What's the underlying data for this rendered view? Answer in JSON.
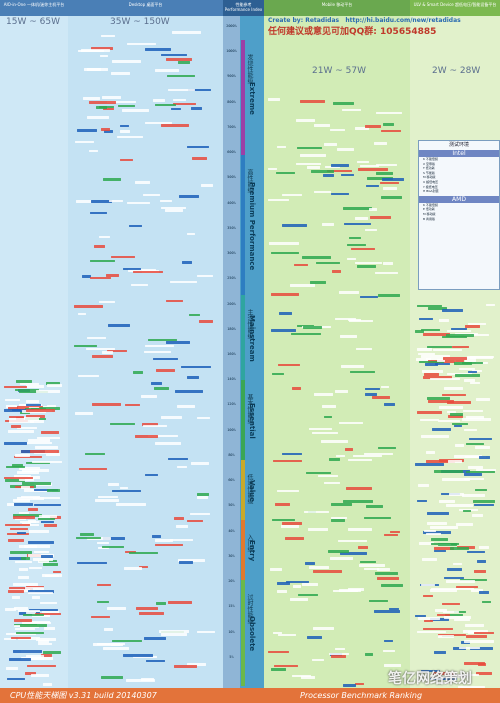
{
  "columns": {
    "aio": "AIO-in-One 一体机/迷你主机平台",
    "desktop": "Desktop 桌面平台",
    "performance": "性能参考 Performance Index",
    "mobile": "Mobile 移动平台",
    "ulv": "ULV & Smart Device 超低电压/智能设备平台"
  },
  "wattage": {
    "aio": "15W ~ 65W",
    "desktop": "35W ~ 150W",
    "mobile": "21W ~ 57W",
    "ulv": "2W ~ 28W"
  },
  "promo": {
    "create_by": "Create by: Retadidas",
    "url": "http://hi.baidu.com/new/retadidas",
    "qq_line": "任何建议或意见可加QQ群: 105654885"
  },
  "tiers": [
    {
      "en": "Extreme",
      "cn": "发烧性能级"
    },
    {
      "en": "Premium Performance",
      "cn": "高性能级"
    },
    {
      "en": "Mainstream",
      "cn": "主流性能级"
    },
    {
      "en": "Essential",
      "cn": "基本性能级"
    },
    {
      "en": "Value",
      "cn": "低端性能级"
    },
    {
      "en": "Entry",
      "cn": "入门级"
    },
    {
      "en": "Obsolete",
      "cn": "过时性能级"
    }
  ],
  "legend": {
    "head": "测试环境",
    "intel": "Intel",
    "amd": "AMD",
    "intel_items": [
      "K 不锁倍频",
      "X 至尊版",
      "T 低功耗",
      "S 节能版",
      "M 移动版",
      "U 超低电压",
      "Y 极低电压",
      "H BGA封装"
    ],
    "amd_items": [
      "K 不锁倍频",
      "E 低功耗",
      "M 移动版",
      "B 商用版"
    ]
  },
  "footer": {
    "left": "CPU性能天梯图 v3.31 build 20140307",
    "right": "Processor Benchmark Ranking"
  },
  "watermark": "笔亿网络策划",
  "chart_data": {
    "type": "table",
    "title": "CPU性能天梯图 v3.31 build 20140307",
    "xlabel": "",
    "ylabel": "Performance Index",
    "performance_ticks": [
      "2000%",
      "1000%",
      "900%",
      "800%",
      "700%",
      "600%",
      "500%",
      "400%",
      "350%",
      "300%",
      "250%",
      "200%",
      "180%",
      "160%",
      "140%",
      "120%",
      "100%",
      "80%",
      "60%",
      "50%",
      "40%",
      "30%",
      "20%",
      "15%",
      "10%",
      "5%"
    ],
    "series": [
      {
        "name": "AIO",
        "values": []
      },
      {
        "name": "Desktop",
        "values": []
      },
      {
        "name": "Mobile",
        "values": []
      },
      {
        "name": "ULV",
        "values": []
      }
    ]
  }
}
